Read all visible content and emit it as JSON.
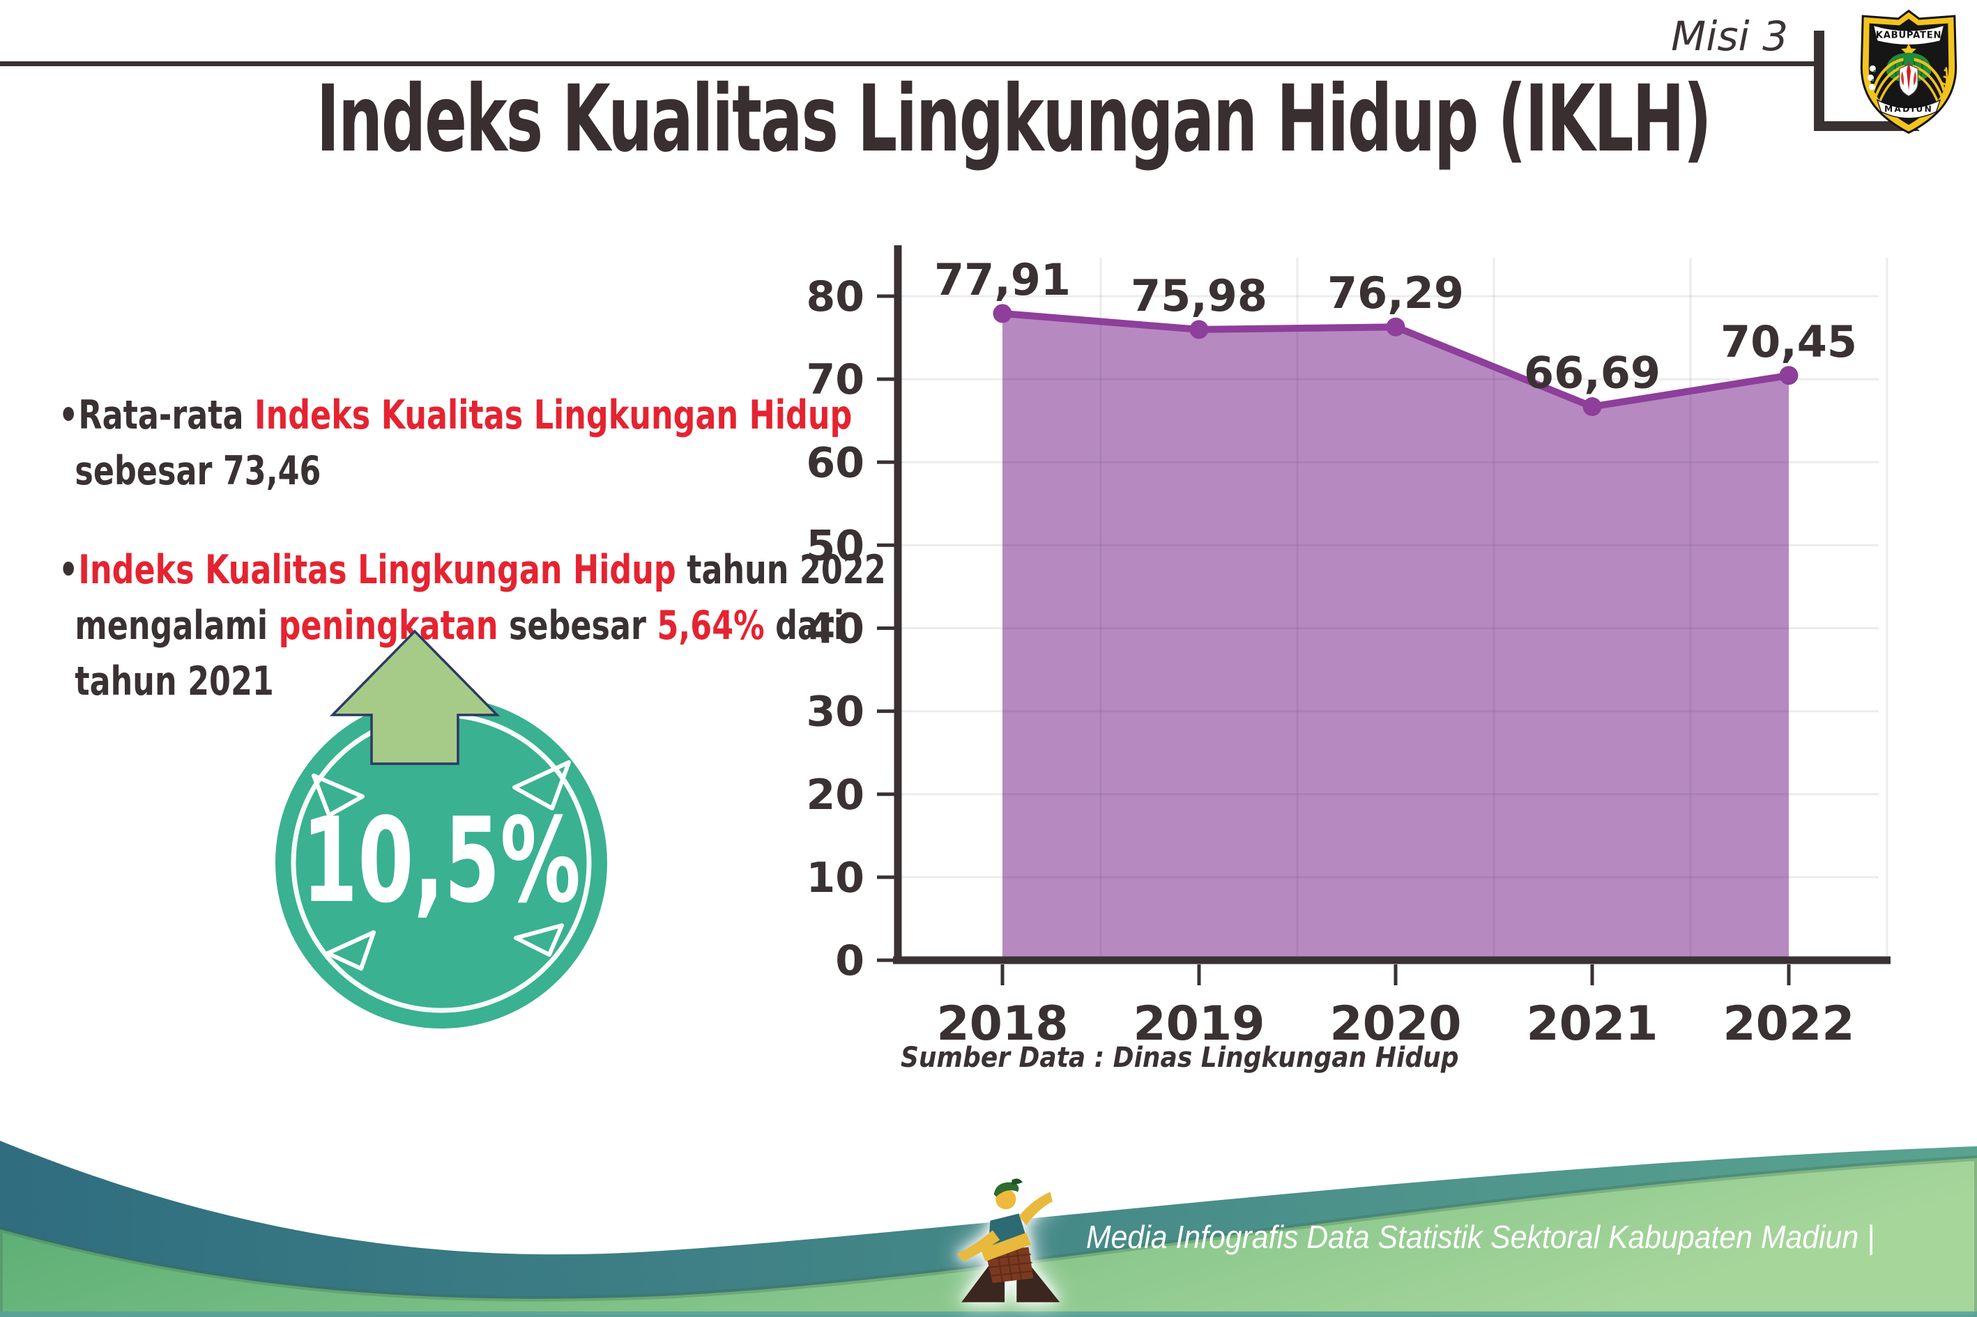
{
  "header": {
    "mission": "Misi 3"
  },
  "logo": {
    "top_text": "KABUPATEN",
    "bottom_text": "MADIUN"
  },
  "title": "Indeks Kualitas Lingkungan Hidup (IKLH)",
  "bullets": [
    {
      "marker": "•",
      "lines": [
        [
          {
            "t": "Rata-rata ",
            "c": "dark"
          },
          {
            "t": "Indeks Kualitas Lingkungan Hidup",
            "c": "red"
          }
        ],
        [
          {
            "t": "sebesar 73,46",
            "c": "dark"
          }
        ]
      ]
    },
    {
      "marker": "•",
      "lines": [
        [
          {
            "t": "Indeks Kualitas Lingkungan Hidup",
            "c": "red"
          },
          {
            "t": " tahun 2022",
            "c": "dark"
          }
        ],
        [
          {
            "t": "mengalami ",
            "c": "dark"
          },
          {
            "t": "peningkatan",
            "c": "red"
          },
          {
            "t": " sebesar ",
            "c": "dark"
          },
          {
            "t": "5,64%",
            "c": "red"
          },
          {
            "t": " dari",
            "c": "dark"
          }
        ],
        [
          {
            "t": "tahun 2021",
            "c": "dark"
          }
        ]
      ]
    }
  ],
  "badge": {
    "value": "10,5%",
    "circle_color": "#3ab191",
    "arrow_color": "#a6cb89",
    "arrow_outline": "#2c3a62"
  },
  "chart_data": {
    "type": "area",
    "title": "",
    "categories": [
      "2018",
      "2019",
      "2020",
      "2021",
      "2022"
    ],
    "values": [
      77.91,
      75.98,
      76.29,
      66.69,
      70.45
    ],
    "point_labels": [
      "77,91",
      "75,98",
      "76,29",
      "66,69",
      "70,45"
    ],
    "xlabel": "",
    "ylabel": "",
    "ylim": [
      0,
      80
    ],
    "yticks": [
      0,
      10,
      20,
      30,
      40,
      50,
      60,
      70,
      80
    ],
    "grid": true,
    "legend": "none",
    "area_color": "#b385bd",
    "line_color": "#8e3e9b",
    "source_label": "Sumber Data : Dinas Lingkungan Hidup"
  },
  "footer": {
    "text": "Media Infografis Data Statistik Sektoral Kabupaten Madiun |"
  },
  "colors": {
    "dark": "#3a3133",
    "red": "#e52330",
    "grid": "rgba(80,60,85,0.10)",
    "teal_wave_start": "#2f6d7f",
    "teal_wave_end": "#5aa390",
    "green_wave_start": "#55ab72",
    "green_wave_end": "#a7d69b"
  }
}
